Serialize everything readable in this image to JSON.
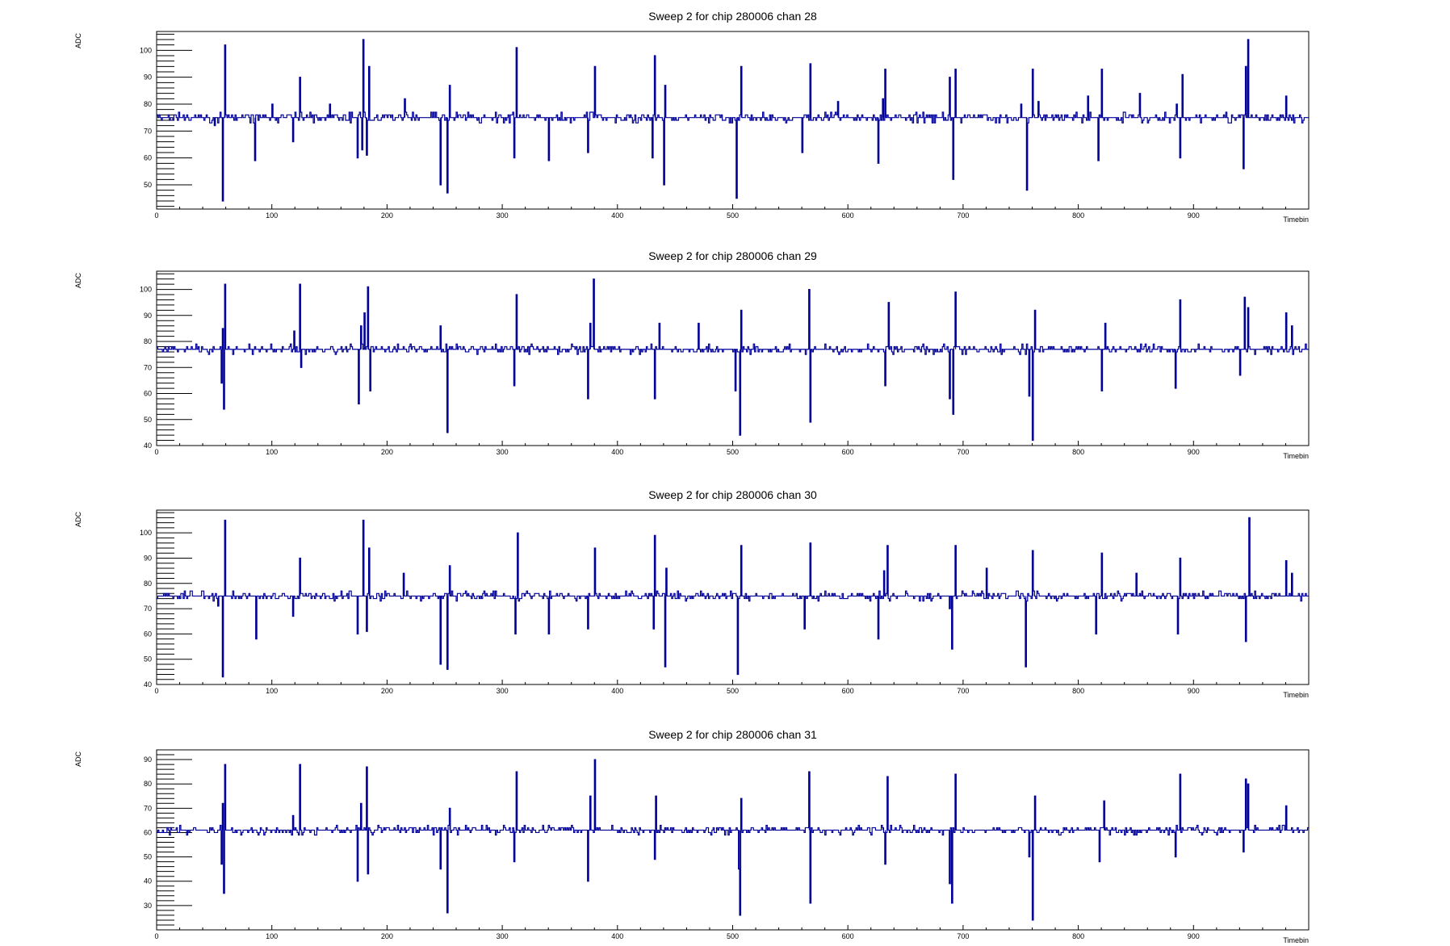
{
  "chart_data": [
    {
      "type": "line",
      "title": "Sweep 2 for chip 280006 chan 28",
      "xlabel": "Timebin",
      "ylabel": "ADC",
      "xlim": [
        0,
        1000
      ],
      "ylim": [
        41,
        107
      ],
      "x_ticks": [
        0,
        100,
        200,
        300,
        400,
        500,
        600,
        700,
        800,
        900
      ],
      "y_ticks": [
        50,
        60,
        70,
        80,
        90,
        100
      ],
      "grid": false,
      "baseline": 75,
      "series": [
        {
          "color": "#000099",
          "spikes": [
            {
              "x": 50,
              "v": 72
            },
            {
              "x": 57,
              "v": 44
            },
            {
              "x": 59,
              "v": 102
            },
            {
              "x": 85,
              "v": 59
            },
            {
              "x": 100,
              "v": 80
            },
            {
              "x": 118,
              "v": 66
            },
            {
              "x": 124,
              "v": 90
            },
            {
              "x": 150,
              "v": 80
            },
            {
              "x": 174,
              "v": 60
            },
            {
              "x": 178,
              "v": 63
            },
            {
              "x": 179,
              "v": 104
            },
            {
              "x": 182,
              "v": 61
            },
            {
              "x": 184,
              "v": 94
            },
            {
              "x": 215,
              "v": 82
            },
            {
              "x": 246,
              "v": 50
            },
            {
              "x": 252,
              "v": 47
            },
            {
              "x": 254,
              "v": 87
            },
            {
              "x": 310,
              "v": 60
            },
            {
              "x": 312,
              "v": 101
            },
            {
              "x": 340,
              "v": 59
            },
            {
              "x": 374,
              "v": 62
            },
            {
              "x": 380,
              "v": 94
            },
            {
              "x": 430,
              "v": 60
            },
            {
              "x": 432,
              "v": 98
            },
            {
              "x": 440,
              "v": 50
            },
            {
              "x": 441,
              "v": 87
            },
            {
              "x": 503,
              "v": 45
            },
            {
              "x": 507,
              "v": 94
            },
            {
              "x": 560,
              "v": 62
            },
            {
              "x": 567,
              "v": 95
            },
            {
              "x": 591,
              "v": 81
            },
            {
              "x": 626,
              "v": 58
            },
            {
              "x": 630,
              "v": 82
            },
            {
              "x": 632,
              "v": 93
            },
            {
              "x": 688,
              "v": 90
            },
            {
              "x": 691,
              "v": 52
            },
            {
              "x": 693,
              "v": 93
            },
            {
              "x": 750,
              "v": 80
            },
            {
              "x": 755,
              "v": 48
            },
            {
              "x": 760,
              "v": 93
            },
            {
              "x": 765,
              "v": 81
            },
            {
              "x": 808,
              "v": 83
            },
            {
              "x": 817,
              "v": 59
            },
            {
              "x": 820,
              "v": 93
            },
            {
              "x": 853,
              "v": 84
            },
            {
              "x": 885,
              "v": 80
            },
            {
              "x": 888,
              "v": 60
            },
            {
              "x": 890,
              "v": 91
            },
            {
              "x": 943,
              "v": 56
            },
            {
              "x": 945,
              "v": 94
            },
            {
              "x": 947,
              "v": 104
            },
            {
              "x": 980,
              "v": 83
            }
          ]
        }
      ]
    },
    {
      "type": "line",
      "title": "Sweep 2 for chip 280006 chan 29",
      "xlabel": "Timebin",
      "ylabel": "ADC",
      "xlim": [
        0,
        1000
      ],
      "ylim": [
        40,
        107
      ],
      "x_ticks": [
        0,
        100,
        200,
        300,
        400,
        500,
        600,
        700,
        800,
        900
      ],
      "y_ticks": [
        40,
        50,
        60,
        70,
        80,
        90,
        100
      ],
      "grid": false,
      "baseline": 77,
      "series": [
        {
          "color": "#000099",
          "spikes": [
            {
              "x": 56,
              "v": 64
            },
            {
              "x": 57,
              "v": 85
            },
            {
              "x": 58,
              "v": 54
            },
            {
              "x": 59,
              "v": 102
            },
            {
              "x": 119,
              "v": 84
            },
            {
              "x": 124,
              "v": 102
            },
            {
              "x": 125,
              "v": 70
            },
            {
              "x": 175,
              "v": 56
            },
            {
              "x": 177,
              "v": 86
            },
            {
              "x": 180,
              "v": 91
            },
            {
              "x": 183,
              "v": 101
            },
            {
              "x": 185,
              "v": 61
            },
            {
              "x": 246,
              "v": 86
            },
            {
              "x": 252,
              "v": 45
            },
            {
              "x": 310,
              "v": 63
            },
            {
              "x": 312,
              "v": 98
            },
            {
              "x": 374,
              "v": 58
            },
            {
              "x": 376,
              "v": 87
            },
            {
              "x": 379,
              "v": 104
            },
            {
              "x": 432,
              "v": 58
            },
            {
              "x": 436,
              "v": 87
            },
            {
              "x": 470,
              "v": 87
            },
            {
              "x": 502,
              "v": 61
            },
            {
              "x": 506,
              "v": 44
            },
            {
              "x": 507,
              "v": 92
            },
            {
              "x": 566,
              "v": 100
            },
            {
              "x": 567,
              "v": 49
            },
            {
              "x": 632,
              "v": 63
            },
            {
              "x": 635,
              "v": 95
            },
            {
              "x": 688,
              "v": 58
            },
            {
              "x": 691,
              "v": 52
            },
            {
              "x": 693,
              "v": 99
            },
            {
              "x": 757,
              "v": 59
            },
            {
              "x": 760,
              "v": 42
            },
            {
              "x": 762,
              "v": 92
            },
            {
              "x": 820,
              "v": 61
            },
            {
              "x": 823,
              "v": 87
            },
            {
              "x": 884,
              "v": 62
            },
            {
              "x": 888,
              "v": 96
            },
            {
              "x": 940,
              "v": 67
            },
            {
              "x": 944,
              "v": 97
            },
            {
              "x": 947,
              "v": 93
            },
            {
              "x": 980,
              "v": 91
            },
            {
              "x": 985,
              "v": 86
            }
          ]
        }
      ]
    },
    {
      "type": "line",
      "title": "Sweep 2 for chip 280006 chan 30",
      "xlabel": "Timebin",
      "ylabel": "ADC",
      "xlim": [
        0,
        1000
      ],
      "ylim": [
        40,
        109
      ],
      "x_ticks": [
        0,
        100,
        200,
        300,
        400,
        500,
        600,
        700,
        800,
        900
      ],
      "y_ticks": [
        40,
        50,
        60,
        70,
        80,
        90,
        100
      ],
      "grid": false,
      "baseline": 75,
      "series": [
        {
          "color": "#000099",
          "spikes": [
            {
              "x": 53,
              "v": 71
            },
            {
              "x": 57,
              "v": 43
            },
            {
              "x": 59,
              "v": 105
            },
            {
              "x": 86,
              "v": 58
            },
            {
              "x": 118,
              "v": 67
            },
            {
              "x": 124,
              "v": 90
            },
            {
              "x": 174,
              "v": 60
            },
            {
              "x": 179,
              "v": 105
            },
            {
              "x": 182,
              "v": 61
            },
            {
              "x": 184,
              "v": 94
            },
            {
              "x": 214,
              "v": 84
            },
            {
              "x": 246,
              "v": 48
            },
            {
              "x": 252,
              "v": 46
            },
            {
              "x": 254,
              "v": 87
            },
            {
              "x": 311,
              "v": 60
            },
            {
              "x": 313,
              "v": 100
            },
            {
              "x": 340,
              "v": 60
            },
            {
              "x": 374,
              "v": 62
            },
            {
              "x": 380,
              "v": 94
            },
            {
              "x": 431,
              "v": 62
            },
            {
              "x": 432,
              "v": 99
            },
            {
              "x": 441,
              "v": 47
            },
            {
              "x": 442,
              "v": 86
            },
            {
              "x": 504,
              "v": 44
            },
            {
              "x": 507,
              "v": 95
            },
            {
              "x": 562,
              "v": 62
            },
            {
              "x": 567,
              "v": 96
            },
            {
              "x": 626,
              "v": 58
            },
            {
              "x": 631,
              "v": 85
            },
            {
              "x": 634,
              "v": 95
            },
            {
              "x": 688,
              "v": 70
            },
            {
              "x": 690,
              "v": 54
            },
            {
              "x": 693,
              "v": 95
            },
            {
              "x": 720,
              "v": 86
            },
            {
              "x": 754,
              "v": 47
            },
            {
              "x": 760,
              "v": 93
            },
            {
              "x": 815,
              "v": 60
            },
            {
              "x": 820,
              "v": 92
            },
            {
              "x": 850,
              "v": 84
            },
            {
              "x": 886,
              "v": 60
            },
            {
              "x": 888,
              "v": 90
            },
            {
              "x": 945,
              "v": 57
            },
            {
              "x": 948,
              "v": 106
            },
            {
              "x": 980,
              "v": 89
            },
            {
              "x": 985,
              "v": 84
            }
          ]
        }
      ]
    },
    {
      "type": "line",
      "title": "Sweep 2 for chip 280006 chan 31",
      "xlabel": "Timebin",
      "ylabel": "ADC",
      "xlim": [
        0,
        1000
      ],
      "ylim": [
        20,
        94
      ],
      "x_ticks": [
        0,
        100,
        200,
        300,
        400,
        500,
        600,
        700,
        800,
        900
      ],
      "y_ticks": [
        30,
        40,
        50,
        60,
        70,
        80,
        90
      ],
      "grid": false,
      "baseline": 61,
      "series": [
        {
          "color": "#000099",
          "spikes": [
            {
              "x": 56,
              "v": 47
            },
            {
              "x": 57,
              "v": 72
            },
            {
              "x": 58,
              "v": 35
            },
            {
              "x": 59,
              "v": 88
            },
            {
              "x": 118,
              "v": 67
            },
            {
              "x": 124,
              "v": 88
            },
            {
              "x": 174,
              "v": 40
            },
            {
              "x": 177,
              "v": 72
            },
            {
              "x": 182,
              "v": 87
            },
            {
              "x": 183,
              "v": 43
            },
            {
              "x": 246,
              "v": 45
            },
            {
              "x": 252,
              "v": 27
            },
            {
              "x": 254,
              "v": 70
            },
            {
              "x": 310,
              "v": 48
            },
            {
              "x": 312,
              "v": 85
            },
            {
              "x": 374,
              "v": 40
            },
            {
              "x": 376,
              "v": 75
            },
            {
              "x": 380,
              "v": 90
            },
            {
              "x": 432,
              "v": 49
            },
            {
              "x": 433,
              "v": 75
            },
            {
              "x": 505,
              "v": 45
            },
            {
              "x": 506,
              "v": 26
            },
            {
              "x": 507,
              "v": 74
            },
            {
              "x": 566,
              "v": 85
            },
            {
              "x": 567,
              "v": 31
            },
            {
              "x": 630,
              "v": 62
            },
            {
              "x": 632,
              "v": 47
            },
            {
              "x": 634,
              "v": 83
            },
            {
              "x": 688,
              "v": 39
            },
            {
              "x": 690,
              "v": 31
            },
            {
              "x": 693,
              "v": 84
            },
            {
              "x": 757,
              "v": 50
            },
            {
              "x": 760,
              "v": 24
            },
            {
              "x": 762,
              "v": 75
            },
            {
              "x": 818,
              "v": 48
            },
            {
              "x": 822,
              "v": 73
            },
            {
              "x": 884,
              "v": 50
            },
            {
              "x": 888,
              "v": 84
            },
            {
              "x": 943,
              "v": 52
            },
            {
              "x": 945,
              "v": 82
            },
            {
              "x": 947,
              "v": 80
            },
            {
              "x": 980,
              "v": 71
            }
          ]
        }
      ]
    }
  ]
}
